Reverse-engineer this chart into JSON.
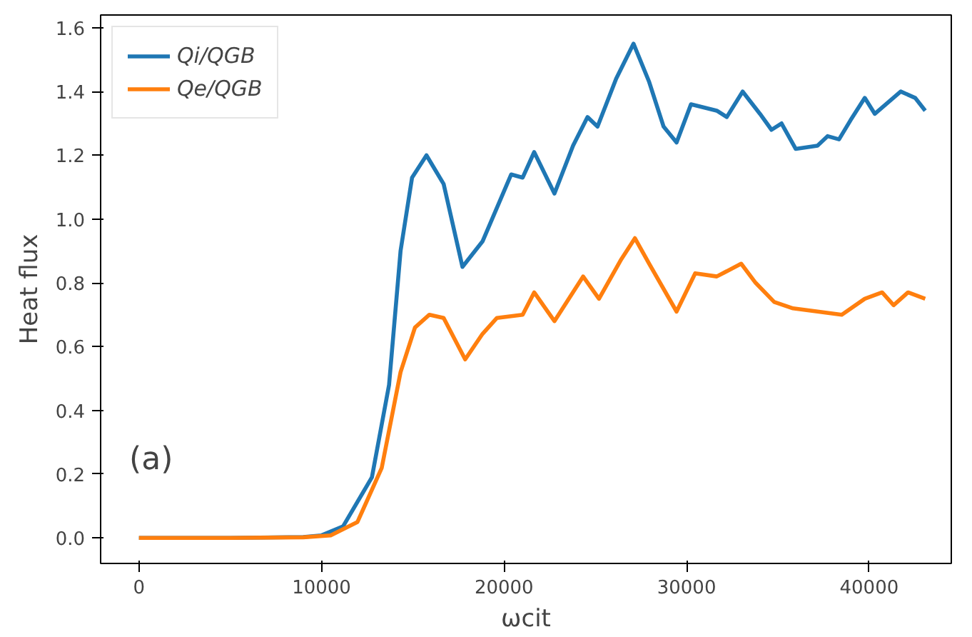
{
  "chart_data": {
    "type": "line",
    "xlabel": "ωcit",
    "ylabel": "Heat flux",
    "annotations": [
      "(a)"
    ],
    "xlim": [
      -2100,
      44500
    ],
    "ylim": [
      -0.08,
      1.64
    ],
    "xticks": [
      0,
      10000,
      20000,
      30000,
      40000
    ],
    "yticks": [
      {
        "value": 0,
        "label": "0.0"
      },
      {
        "value": 0.2,
        "label": "0.2"
      },
      {
        "value": 0.4,
        "label": "0.4"
      },
      {
        "value": 0.6,
        "label": "0.6"
      },
      {
        "value": 0.8,
        "label": "0.8"
      },
      {
        "value": 1.0,
        "label": "1.0"
      },
      {
        "value": 1.2,
        "label": "1.2"
      },
      {
        "value": 1.4,
        "label": "1.4"
      },
      {
        "value": 1.6,
        "label": "1.6"
      }
    ],
    "grid": false,
    "legend": "top left",
    "marker": "none",
    "line_style": "solid",
    "series": [
      {
        "name": "Qi/QGB",
        "color": "#1f77b4",
        "x": [
          0,
          5000,
          9000,
          10000,
          11180,
          12760,
          13700,
          14330,
          14960,
          15750,
          16690,
          17720,
          18820,
          20390,
          21020,
          21650,
          22760,
          23780,
          24570,
          25120,
          26140,
          27090,
          27950,
          28740,
          29450,
          30240,
          31650,
          32200,
          33070,
          34020,
          34650,
          35200,
          35980,
          37170,
          37720,
          38350,
          38980,
          39760,
          40310,
          41730,
          42520,
          43070
        ],
        "values": [
          0,
          0,
          0.003,
          0.008,
          0.036,
          0.19,
          0.48,
          0.9,
          1.13,
          1.2,
          1.11,
          0.85,
          0.93,
          1.14,
          1.13,
          1.21,
          1.08,
          1.23,
          1.32,
          1.29,
          1.44,
          1.55,
          1.43,
          1.29,
          1.24,
          1.36,
          1.34,
          1.32,
          1.4,
          1.33,
          1.28,
          1.3,
          1.22,
          1.23,
          1.26,
          1.25,
          1.31,
          1.38,
          1.33,
          1.4,
          1.38,
          1.34
        ]
      },
      {
        "name": "Qe/QGB",
        "color": "#ff7f0e",
        "x": [
          0,
          5000,
          9000,
          10500,
          11970,
          13300,
          14330,
          15120,
          15910,
          16690,
          17870,
          18820,
          19610,
          21020,
          21650,
          22760,
          24330,
          25200,
          26380,
          27170,
          27950,
          29450,
          30470,
          31650,
          32990,
          33780,
          34800,
          35830,
          37170,
          38500,
          39760,
          40710,
          41340,
          42130,
          43070
        ],
        "values": [
          0,
          0,
          0.002,
          0.008,
          0.05,
          0.22,
          0.52,
          0.66,
          0.7,
          0.69,
          0.56,
          0.64,
          0.69,
          0.7,
          0.77,
          0.68,
          0.82,
          0.75,
          0.87,
          0.94,
          0.86,
          0.71,
          0.83,
          0.82,
          0.86,
          0.8,
          0.74,
          0.72,
          0.71,
          0.7,
          0.75,
          0.77,
          0.73,
          0.77,
          0.75
        ]
      }
    ]
  }
}
